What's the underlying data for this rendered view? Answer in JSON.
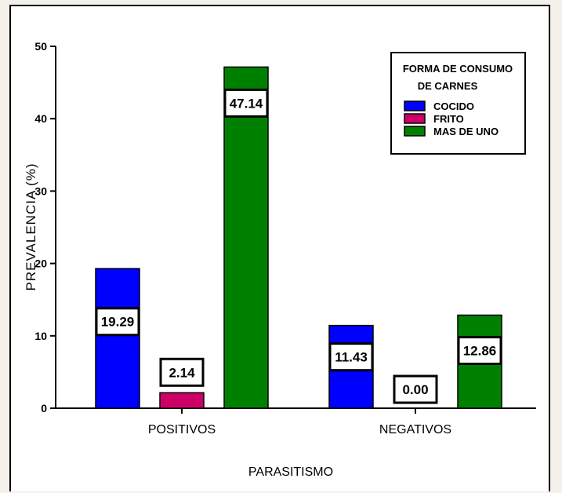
{
  "chart_data": {
    "type": "bar",
    "title": "",
    "xlabel": "PARASITISMO",
    "ylabel": "PREVALENCIA (%)",
    "ylim": [
      0,
      50
    ],
    "yticks": [
      "0",
      "10",
      "20",
      "30",
      "40",
      "50"
    ],
    "categories": [
      "POSITIVOS",
      "NEGATIVOS"
    ],
    "legend": {
      "title_line1": "FORMA DE CONSUMO",
      "title_line2": "DE CARNES",
      "placement": "top-right"
    },
    "series": [
      {
        "name": "COCIDO",
        "color": "#0000ff",
        "values": [
          19.29,
          11.43
        ],
        "labels": [
          "19.29",
          "11.43"
        ]
      },
      {
        "name": "FRITO",
        "color": "#cc0066",
        "values": [
          2.14,
          0.0
        ],
        "labels": [
          "2.14",
          "0.00"
        ]
      },
      {
        "name": "MAS DE UNO",
        "color": "#008000",
        "values": [
          47.14,
          12.86
        ],
        "labels": [
          "47.14",
          "12.86"
        ]
      }
    ]
  }
}
